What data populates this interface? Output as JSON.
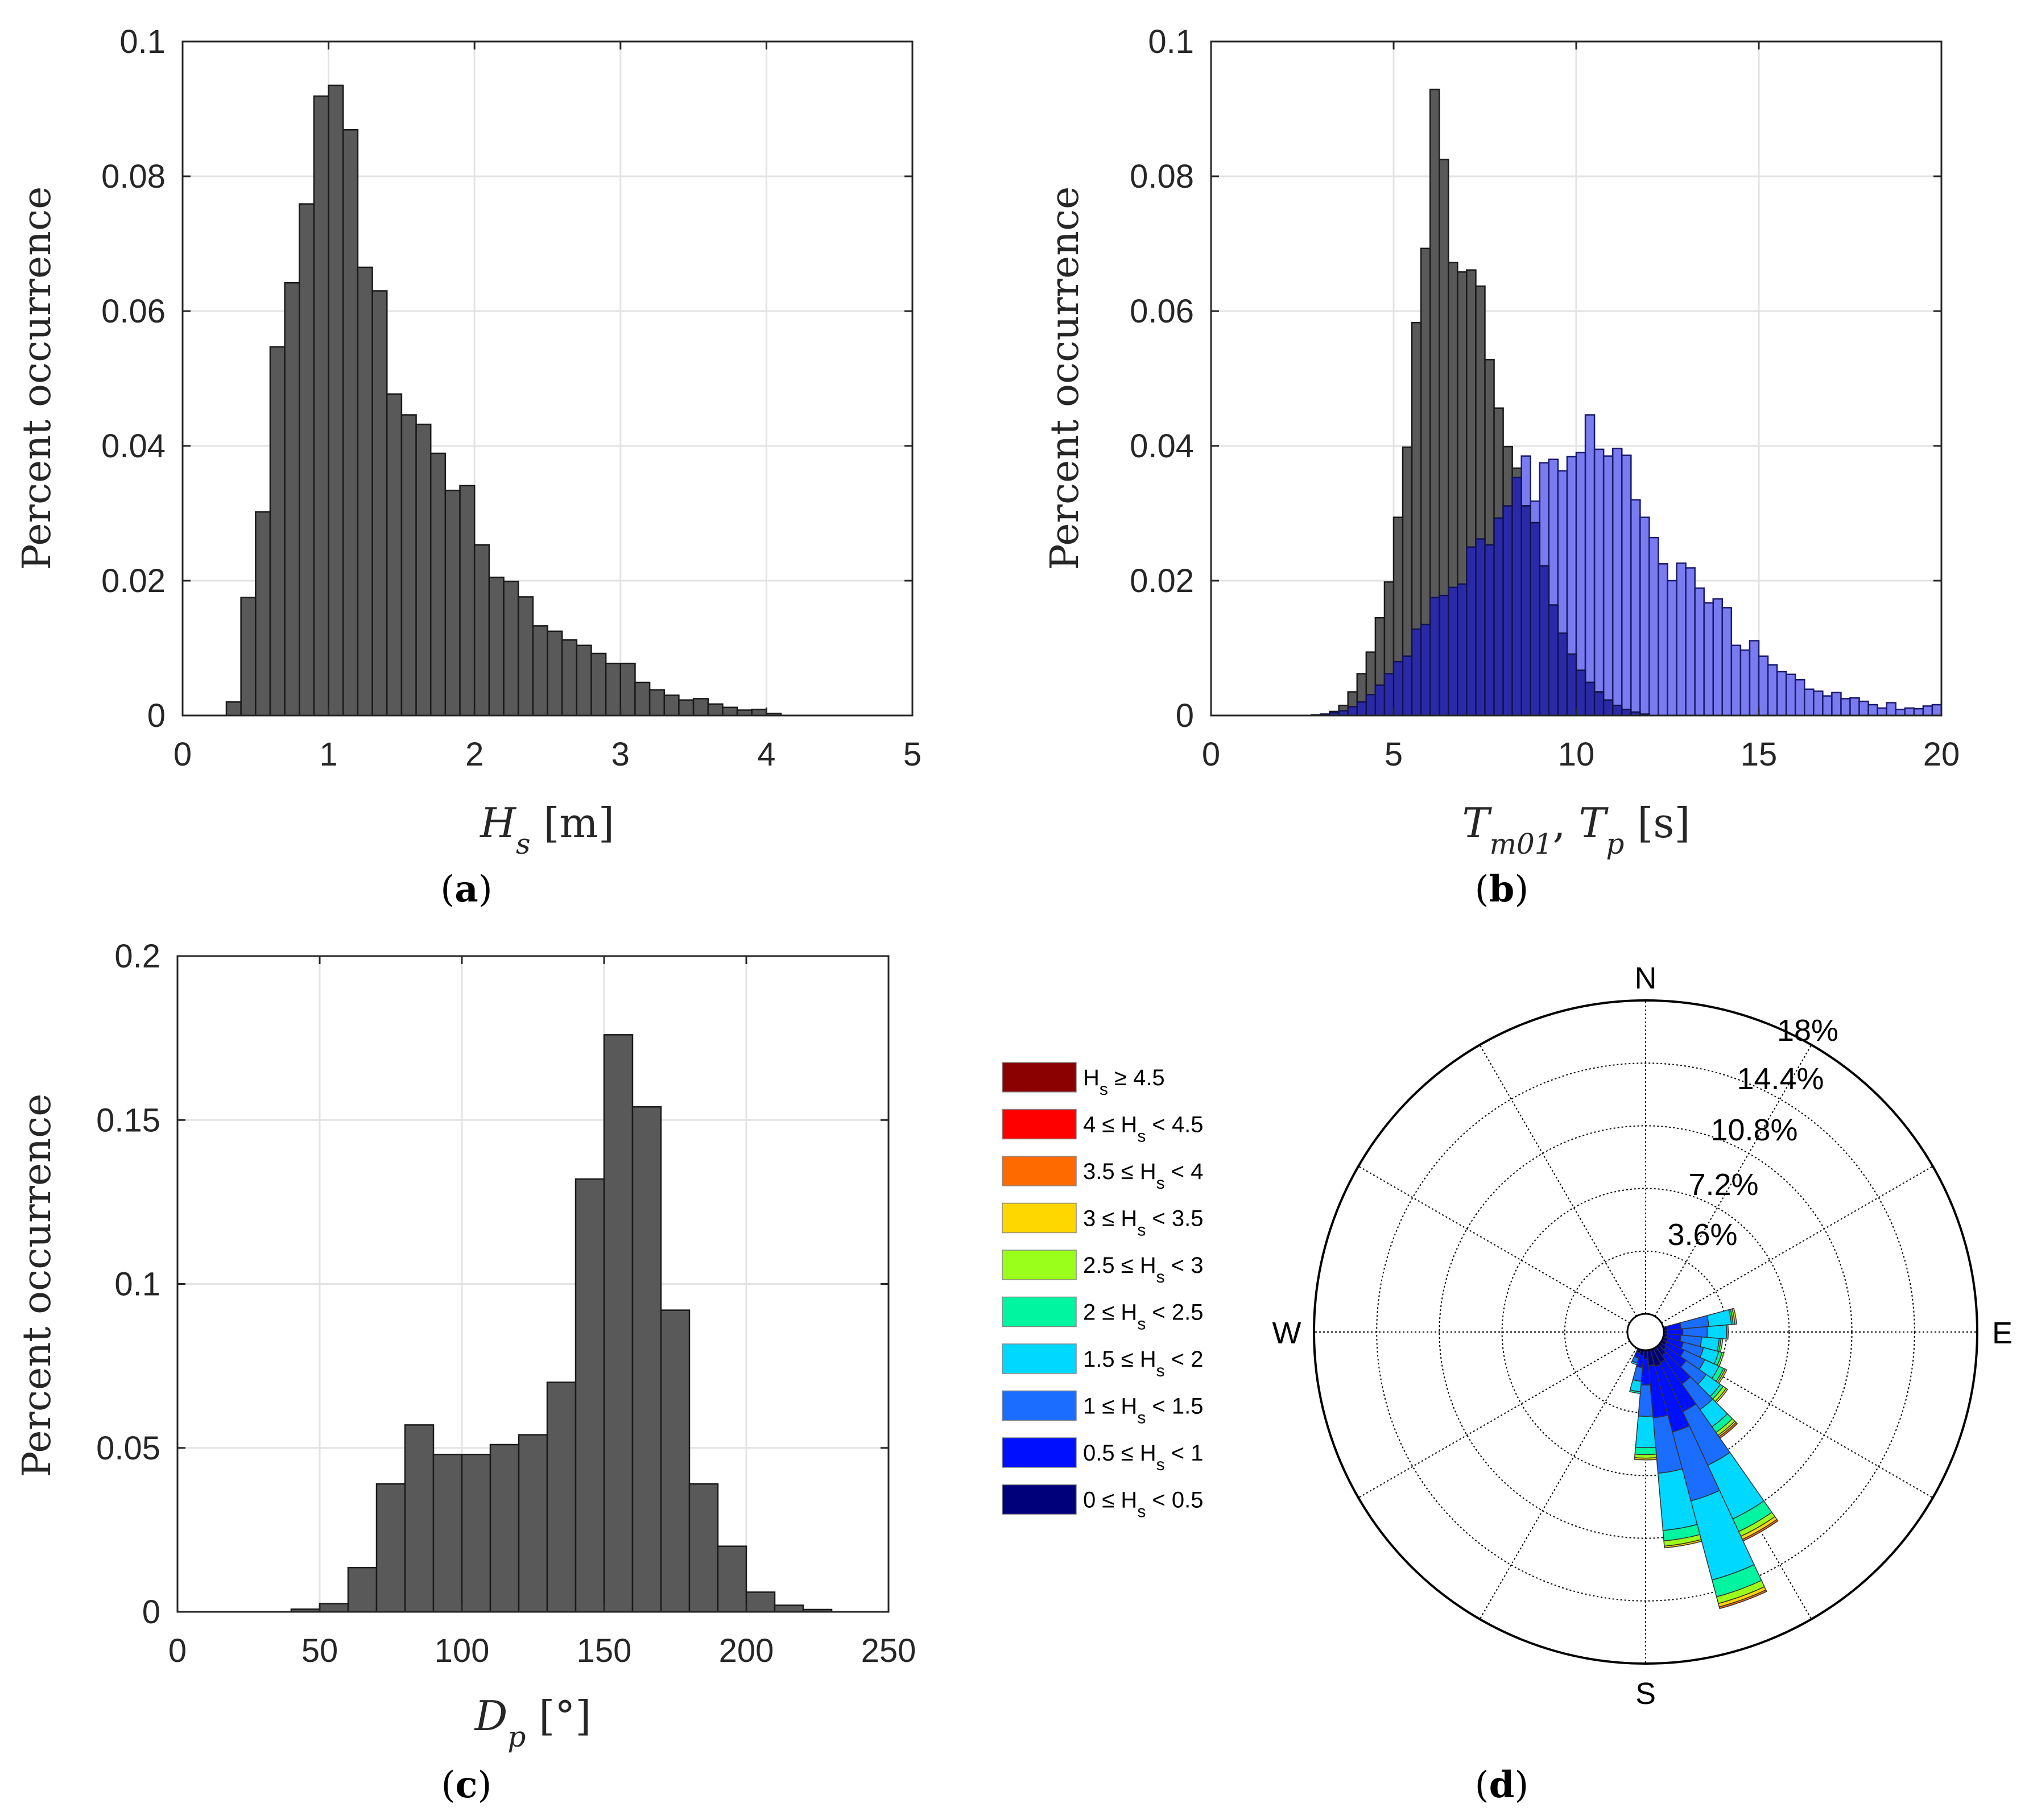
{
  "panels": [
    {
      "id": "a",
      "label": "a"
    },
    {
      "id": "b",
      "label": "b"
    },
    {
      "id": "c",
      "label": "c"
    },
    {
      "id": "d",
      "label": "d"
    }
  ],
  "chart_data": [
    {
      "id": "a",
      "type": "bar",
      "xlabel": "Hs [m]",
      "xlabel_main": "H",
      "xlabel_sub": "s",
      "xlabel_unit": " [m]",
      "ylabel": "Percent occurrence",
      "xlim": [
        0,
        5
      ],
      "ylim": [
        0,
        0.1
      ],
      "xticks": [
        0,
        1,
        2,
        3,
        4,
        5
      ],
      "yticks": [
        0,
        0.02,
        0.04,
        0.06,
        0.08,
        0.1
      ],
      "ytick_labels": [
        "0",
        "0.02",
        "0.04",
        "0.06",
        "0.08",
        "0.1"
      ],
      "grid": true,
      "bin_width": 0.1,
      "series": [
        {
          "name": "Hs",
          "color": "#595959",
          "x": [
            0.3,
            0.4,
            0.5,
            0.6,
            0.7,
            0.8,
            0.9,
            1.0,
            1.1,
            1.2,
            1.3,
            1.4,
            1.5,
            1.6,
            1.7,
            1.8,
            1.9,
            2.0,
            2.1,
            2.2,
            2.3,
            2.4,
            2.5,
            2.6,
            2.7,
            2.8,
            2.9,
            3.0,
            3.1,
            3.2,
            3.3,
            3.4,
            3.5,
            3.6,
            3.7,
            3.8,
            3.9,
            4.0
          ],
          "values": [
            0.002,
            0.0175,
            0.0302,
            0.0547,
            0.0642,
            0.0759,
            0.0919,
            0.0935,
            0.0869,
            0.0665,
            0.063,
            0.0477,
            0.0446,
            0.0432,
            0.0389,
            0.0334,
            0.0341,
            0.0253,
            0.0205,
            0.0199,
            0.0176,
            0.0133,
            0.0125,
            0.0112,
            0.0104,
            0.0092,
            0.0077,
            0.0077,
            0.0049,
            0.0038,
            0.003,
            0.0023,
            0.0025,
            0.0017,
            0.0012,
            0.0008,
            0.0009,
            0.0003
          ]
        }
      ]
    },
    {
      "id": "b",
      "type": "bar",
      "xlabel": "Tm01, Tp [s]",
      "xlabel_main1": "T",
      "xlabel_sub1": "m01",
      "xlabel_sep": ", ",
      "xlabel_main2": "T",
      "xlabel_sub2": "p",
      "xlabel_unit": " [s]",
      "ylabel": "Percent occurrence",
      "xlim": [
        0,
        20
      ],
      "ylim": [
        0,
        0.1
      ],
      "xticks": [
        0,
        5,
        10,
        15,
        20
      ],
      "yticks": [
        0,
        0.02,
        0.04,
        0.06,
        0.08,
        0.1
      ],
      "ytick_labels": [
        "0",
        "0.02",
        "0.04",
        "0.06",
        "0.08",
        "0.1"
      ],
      "grid": true,
      "bin_width": 0.25,
      "series": [
        {
          "name": "Tm01",
          "color": "#595959",
          "x": [
            2.75,
            3.0,
            3.25,
            3.5,
            3.75,
            4.0,
            4.25,
            4.5,
            4.75,
            5.0,
            5.25,
            5.5,
            5.75,
            6.0,
            6.25,
            6.5,
            6.75,
            7.0,
            7.25,
            7.5,
            7.75,
            8.0,
            8.25,
            8.5,
            8.75,
            9.0,
            9.25,
            9.5,
            9.75,
            10.0,
            10.25,
            10.5,
            10.75,
            11.0,
            11.25,
            11.5,
            11.75
          ],
          "values": [
            0.0001,
            0.0002,
            0.0006,
            0.0015,
            0.0035,
            0.0062,
            0.0094,
            0.0145,
            0.0198,
            0.0294,
            0.0398,
            0.0583,
            0.0693,
            0.0929,
            0.0825,
            0.0672,
            0.0658,
            0.0661,
            0.0637,
            0.0528,
            0.0456,
            0.0399,
            0.0367,
            0.0311,
            0.0286,
            0.0222,
            0.0164,
            0.0122,
            0.0091,
            0.0067,
            0.0049,
            0.0035,
            0.0023,
            0.0015,
            0.0009,
            0.0005,
            0.0002
          ]
        },
        {
          "name": "Tp",
          "color": "#7b7bf0",
          "x": [
            2.75,
            3.0,
            3.25,
            3.5,
            3.75,
            4.0,
            4.25,
            4.5,
            4.75,
            5.0,
            5.25,
            5.5,
            5.75,
            6.0,
            6.25,
            6.5,
            6.75,
            7.0,
            7.25,
            7.5,
            7.75,
            8.0,
            8.25,
            8.5,
            8.75,
            9.0,
            9.25,
            9.5,
            9.75,
            10.0,
            10.25,
            10.5,
            10.75,
            11.0,
            11.25,
            11.5,
            11.75,
            12.0,
            12.25,
            12.5,
            12.75,
            13.0,
            13.25,
            13.5,
            13.75,
            14.0,
            14.25,
            14.5,
            14.75,
            15.0,
            15.25,
            15.5,
            15.75,
            16.0,
            16.25,
            16.5,
            16.75,
            17.0,
            17.25,
            17.5,
            17.75,
            18.0,
            18.25,
            18.5,
            18.75,
            19.0,
            19.25,
            19.5,
            19.75
          ],
          "values": [
            0.0001,
            0.0002,
            0.0004,
            0.0007,
            0.0013,
            0.002,
            0.0031,
            0.0045,
            0.0062,
            0.008,
            0.0088,
            0.0128,
            0.0135,
            0.0175,
            0.0178,
            0.019,
            0.0195,
            0.025,
            0.0262,
            0.0253,
            0.0293,
            0.0311,
            0.0353,
            0.0385,
            0.0318,
            0.0375,
            0.038,
            0.0363,
            0.0384,
            0.039,
            0.0446,
            0.0395,
            0.0385,
            0.0396,
            0.0386,
            0.032,
            0.0294,
            0.0264,
            0.0225,
            0.02,
            0.0226,
            0.0219,
            0.0189,
            0.0167,
            0.0173,
            0.016,
            0.0104,
            0.0097,
            0.0111,
            0.0088,
            0.0075,
            0.0065,
            0.0061,
            0.0053,
            0.0039,
            0.0036,
            0.0029,
            0.0034,
            0.0025,
            0.0026,
            0.0021,
            0.0016,
            0.0011,
            0.0019,
            0.0009,
            0.0011,
            0.001,
            0.0014,
            0.0016
          ]
        }
      ]
    },
    {
      "id": "c",
      "type": "bar",
      "xlabel": "Dp [°]",
      "xlabel_main": "D",
      "xlabel_sub": "p",
      "xlabel_unit": " [°]",
      "ylabel": "Percent occurrence",
      "xlim": [
        0,
        250
      ],
      "ylim": [
        0,
        0.2
      ],
      "xticks": [
        0,
        50,
        100,
        150,
        200,
        250
      ],
      "yticks": [
        0,
        0.05,
        0.1,
        0.15,
        0.2
      ],
      "ytick_labels": [
        "0",
        "0.05",
        "0.1",
        "0.15",
        "0.2"
      ],
      "grid": true,
      "bin_width": 10,
      "series": [
        {
          "name": "Dp",
          "color": "#595959",
          "x": [
            40,
            50,
            60,
            70,
            80,
            90,
            100,
            110,
            120,
            130,
            140,
            150,
            160,
            170,
            180,
            190,
            200,
            210,
            220
          ],
          "values": [
            0.0008,
            0.0025,
            0.0135,
            0.039,
            0.057,
            0.048,
            0.048,
            0.051,
            0.054,
            0.07,
            0.132,
            0.176,
            0.154,
            0.092,
            0.039,
            0.02,
            0.006,
            0.002,
            0.0007
          ]
        }
      ]
    },
    {
      "id": "d",
      "type": "rose",
      "cardinals": {
        "N": "N",
        "E": "E",
        "S": "S",
        "W": "W"
      },
      "ring_labels": [
        "3.6%",
        "7.2%",
        "10.8%",
        "14.4%",
        "18%"
      ],
      "ring_values": [
        3.6,
        7.2,
        10.8,
        14.4,
        18
      ],
      "max_percent": 18,
      "sector_width_deg": 10,
      "legend": [
        {
          "label": "Hs ≥ 4.5",
          "pre": "H",
          "sub": "s",
          "post": " ≥ 4.5",
          "color": "#8b0000"
        },
        {
          "label": "4 ≤ Hs < 4.5",
          "pre": "4 ≤ H",
          "sub": "s",
          "post": " < 4.5",
          "color": "#ff0000"
        },
        {
          "label": "3.5 ≤ Hs < 4",
          "pre": "3.5 ≤ H",
          "sub": "s",
          "post": " < 4",
          "color": "#ff6a00"
        },
        {
          "label": "3 ≤ Hs < 3.5",
          "pre": "3 ≤ H",
          "sub": "s",
          "post": " < 3.5",
          "color": "#ffd700"
        },
        {
          "label": "2.5 ≤ Hs < 3",
          "pre": "2.5 ≤ H",
          "sub": "s",
          "post": " < 3",
          "color": "#9aff1a"
        },
        {
          "label": "2 ≤ Hs < 2.5",
          "pre": "2 ≤ H",
          "sub": "s",
          "post": " < 2.5",
          "color": "#00f5a0"
        },
        {
          "label": "1.5 ≤ Hs < 2",
          "pre": "1.5 ≤ H",
          "sub": "s",
          "post": " < 2",
          "color": "#00d8ff"
        },
        {
          "label": "1 ≤ Hs < 1.5",
          "pre": "1 ≤ H",
          "sub": "s",
          "post": " < 1.5",
          "color": "#1a6dff"
        },
        {
          "label": "0.5 ≤ Hs < 1",
          "pre": "0.5 ≤ H",
          "sub": "s",
          "post": " < 1",
          "color": "#0010ff"
        },
        {
          "label": "0 ≤ Hs < 0.5",
          "pre": "0 ≤ H",
          "sub": "s",
          "post": " < 0.5",
          "color": "#00007a"
        }
      ],
      "sectors": [
        {
          "dir": 80,
          "cum": [
            0.2,
            1.0,
            2.6,
            3.9,
            4.0,
            4.1,
            4.2,
            4.2,
            4.2,
            4.2
          ]
        },
        {
          "dir": 90,
          "cum": [
            0.2,
            1.1,
            2.5,
            3.6,
            3.7,
            3.7,
            3.7,
            3.7,
            3.7,
            3.7
          ]
        },
        {
          "dir": 100,
          "cum": [
            0.2,
            1.0,
            2.2,
            3.2,
            3.3,
            3.4,
            3.4,
            3.4,
            3.4,
            3.4
          ]
        },
        {
          "dir": 110,
          "cum": [
            0.3,
            1.2,
            2.4,
            3.3,
            3.5,
            3.6,
            3.6,
            3.6,
            3.6,
            3.6
          ]
        },
        {
          "dir": 120,
          "cum": [
            0.3,
            1.4,
            2.7,
            3.6,
            3.9,
            4.0,
            4.1,
            4.1,
            4.1,
            4.1
          ]
        },
        {
          "dir": 130,
          "cum": [
            0.4,
            1.8,
            3.2,
            4.2,
            4.4,
            4.6,
            4.7,
            4.7,
            4.7,
            4.7
          ]
        },
        {
          "dir": 140,
          "cum": [
            0.6,
            2.6,
            4.4,
            5.6,
            6.0,
            6.2,
            6.3,
            6.4,
            6.4,
            6.4
          ]
        },
        {
          "dir": 150,
          "cum": [
            0.9,
            4.0,
            7.4,
            10.8,
            11.6,
            11.9,
            12.1,
            12.2,
            12.2,
            12.2
          ]
        },
        {
          "dir": 160,
          "cum": [
            1.0,
            4.9,
            9.0,
            13.7,
            14.7,
            15.1,
            15.3,
            15.4,
            15.4,
            15.4
          ]
        },
        {
          "dir": 170,
          "cum": [
            0.9,
            3.9,
            7.1,
            10.4,
            11.0,
            11.3,
            11.4,
            11.4,
            11.4,
            11.4
          ]
        },
        {
          "dir": 180,
          "cum": [
            0.5,
            2.0,
            3.8,
            5.6,
            6.0,
            6.2,
            6.3,
            6.3,
            6.3,
            6.3
          ]
        },
        {
          "dir": 190,
          "cum": [
            0.3,
            1.0,
            1.8,
            2.4,
            2.5,
            2.5,
            2.5,
            2.5,
            2.5,
            2.5
          ]
        },
        {
          "dir": 200,
          "cum": [
            0.2,
            0.5,
            0.8,
            0.9,
            0.9,
            0.9,
            0.9,
            0.9,
            0.9,
            0.9
          ]
        }
      ]
    }
  ]
}
